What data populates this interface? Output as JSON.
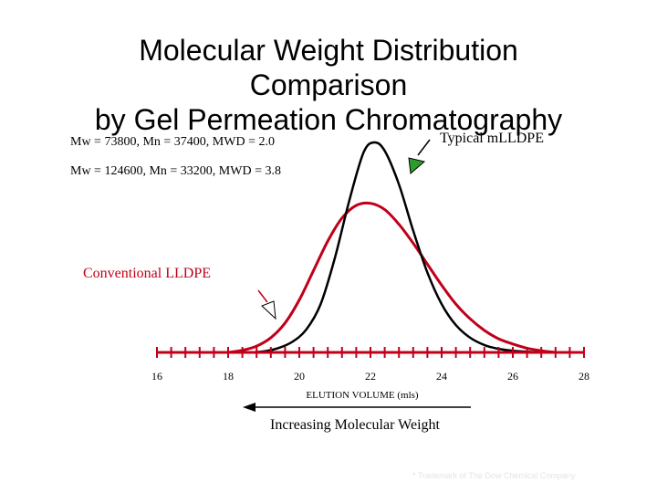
{
  "chart_data": {
    "type": "line",
    "title": [
      "Molecular Weight Distribution",
      "Comparison",
      "by Gel Permeation Chromatography"
    ],
    "xlabel": "ELUTION VOLUME (mls)",
    "ylabel": "",
    "xlim": [
      16,
      28
    ],
    "ylim": [
      0,
      1
    ],
    "x_ticks": [
      16,
      18,
      20,
      22,
      24,
      26,
      28
    ],
    "minor_tick_step": 0.4,
    "series": [
      {
        "name": "Typical mLLDPE",
        "color": "#000000",
        "annotation": "Mw =  73800, Mn = 37400, MWD = 2.0",
        "x": [
          18.6,
          19.0,
          19.4,
          19.8,
          20.2,
          20.6,
          21.0,
          21.4,
          21.8,
          22.1,
          22.4,
          22.8,
          23.2,
          23.6,
          24.0,
          24.4,
          24.8,
          25.2,
          25.6,
          26.0,
          26.4,
          26.8
        ],
        "y": [
          0.0,
          0.005,
          0.02,
          0.05,
          0.11,
          0.23,
          0.45,
          0.72,
          0.95,
          1.0,
          0.96,
          0.8,
          0.58,
          0.38,
          0.23,
          0.13,
          0.07,
          0.035,
          0.017,
          0.008,
          0.003,
          0.0
        ]
      },
      {
        "name": "Conventional LLDPE",
        "color": "#c0001a",
        "annotation": "Mw = 124600, Mn = 33200, MWD = 3.8",
        "x": [
          18.0,
          18.4,
          18.8,
          19.2,
          19.6,
          20.0,
          20.4,
          20.8,
          21.2,
          21.6,
          22.0,
          22.4,
          22.8,
          23.2,
          23.6,
          24.0,
          24.4,
          24.8,
          25.2,
          25.6,
          26.0,
          26.4,
          26.8,
          27.2
        ],
        "y": [
          0.0,
          0.01,
          0.03,
          0.07,
          0.14,
          0.25,
          0.39,
          0.53,
          0.64,
          0.7,
          0.71,
          0.68,
          0.61,
          0.52,
          0.42,
          0.32,
          0.23,
          0.16,
          0.105,
          0.065,
          0.04,
          0.02,
          0.008,
          0.0
        ]
      }
    ],
    "labels": {
      "mlldpe_label": "Typical mLLDPE",
      "conventional_label": "Conventional LLDPE",
      "mlldpe_stats": "Mw =  73800, Mn = 37400, MWD = 2.0",
      "conventional_stats": "Mw = 124600, Mn = 33200, MWD = 3.8",
      "arrow_caption": "Increasing Molecular Weight"
    },
    "colors": {
      "mlldpe": "#000000",
      "conventional": "#c0001a",
      "arrow_fill": "#2e9b2e"
    }
  },
  "footnote": "* Trademark of The Dow Chemical Company"
}
